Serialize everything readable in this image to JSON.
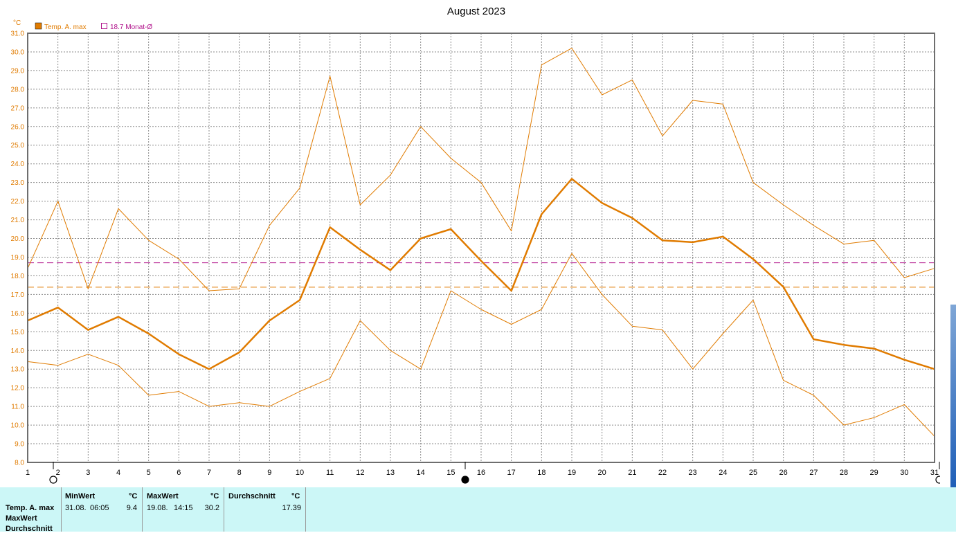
{
  "chart_data": {
    "type": "line",
    "title": "August 2023",
    "ylabel": "°C",
    "ylim": [
      8.0,
      31.0
    ],
    "yticks": [
      "8.0",
      "9.0",
      "10.0",
      "11.0",
      "12.0",
      "13.0",
      "14.0",
      "15.0",
      "16.0",
      "17.0",
      "18.0",
      "19.0",
      "20.0",
      "21.0",
      "22.0",
      "23.0",
      "24.0",
      "25.0",
      "26.0",
      "27.0",
      "28.0",
      "29.0",
      "30.0",
      "31.0"
    ],
    "x": [
      1,
      2,
      3,
      4,
      5,
      6,
      7,
      8,
      9,
      10,
      11,
      12,
      13,
      14,
      15,
      16,
      17,
      18,
      19,
      20,
      21,
      22,
      23,
      24,
      25,
      26,
      27,
      28,
      29,
      30,
      31
    ],
    "xticks": [
      "1",
      "2",
      "3",
      "4",
      "5",
      "6",
      "7",
      "8",
      "9",
      "10",
      "11",
      "12",
      "13",
      "14",
      "15",
      "16",
      "17",
      "18",
      "19",
      "20",
      "21",
      "22",
      "23",
      "24",
      "25",
      "26",
      "27",
      "28",
      "29",
      "30",
      "31"
    ],
    "grid": true,
    "legend": [
      {
        "label": "Temp. A. max",
        "color": "#e07b00",
        "marker": "filled-square"
      },
      {
        "label": "18.7 Monat-Ø",
        "color": "#b0108a",
        "marker": "hollow-square"
      }
    ],
    "series": [
      {
        "name": "Temp. A. max",
        "role": "average",
        "color": "#e07b00",
        "values": [
          15.6,
          16.3,
          15.1,
          15.8,
          14.9,
          13.8,
          13.0,
          13.9,
          15.6,
          16.7,
          20.6,
          19.4,
          18.3,
          20.0,
          20.5,
          18.8,
          17.2,
          21.3,
          23.2,
          21.9,
          21.1,
          19.9,
          19.8,
          20.1,
          18.9,
          17.4,
          14.6,
          14.3,
          14.1,
          13.5,
          13.0
        ]
      },
      {
        "role": "maximum",
        "color": "#e07b00",
        "values": [
          18.4,
          22.0,
          17.3,
          21.6,
          19.9,
          18.9,
          17.2,
          17.3,
          20.7,
          22.7,
          28.7,
          21.8,
          23.4,
          26.0,
          24.3,
          23.0,
          20.4,
          29.3,
          30.2,
          27.7,
          28.5,
          25.5,
          27.4,
          27.2,
          23.0,
          21.8,
          20.7,
          19.7,
          19.9,
          17.9,
          18.4
        ]
      },
      {
        "role": "minimum",
        "color": "#e07b00",
        "values": [
          13.4,
          13.2,
          13.8,
          13.2,
          11.6,
          11.8,
          11.0,
          11.2,
          11.0,
          11.8,
          12.5,
          15.6,
          14.0,
          13.0,
          17.2,
          16.2,
          15.4,
          16.2,
          19.2,
          17.0,
          15.3,
          15.1,
          13.0,
          14.9,
          16.7,
          12.4,
          11.6,
          10.0,
          10.4,
          11.1,
          9.4
        ]
      }
    ],
    "reference_lines": [
      {
        "label": "18.7 Monat-Ø",
        "value": 18.7,
        "color": "#b0108a",
        "style": "dashed"
      },
      {
        "value": 17.39,
        "color": "#e07b00",
        "style": "dashed"
      }
    ],
    "moon_markers": [
      {
        "x": 1,
        "type": "full-moon"
      },
      {
        "x": 16,
        "type": "new-moon"
      },
      {
        "x": 31,
        "type": "full-moon"
      }
    ]
  },
  "stats": {
    "row_labels": [
      "Temp. A. max",
      "MaxWert",
      "Durchschnitt"
    ],
    "min": {
      "header": "MinWert",
      "unit": "°C",
      "date": "31.08.",
      "time": "06:05",
      "value": "9.4"
    },
    "max": {
      "header": "MaxWert",
      "unit": "°C",
      "date": "19.08.",
      "time": "14:15",
      "value": "30.2"
    },
    "avg": {
      "header": "Durchschnitt",
      "unit": "°C",
      "value": "17.39"
    }
  },
  "colors": {
    "series": "#e07b00",
    "month_avg": "#b0108a",
    "stats_bg": "#ccf7f7"
  }
}
